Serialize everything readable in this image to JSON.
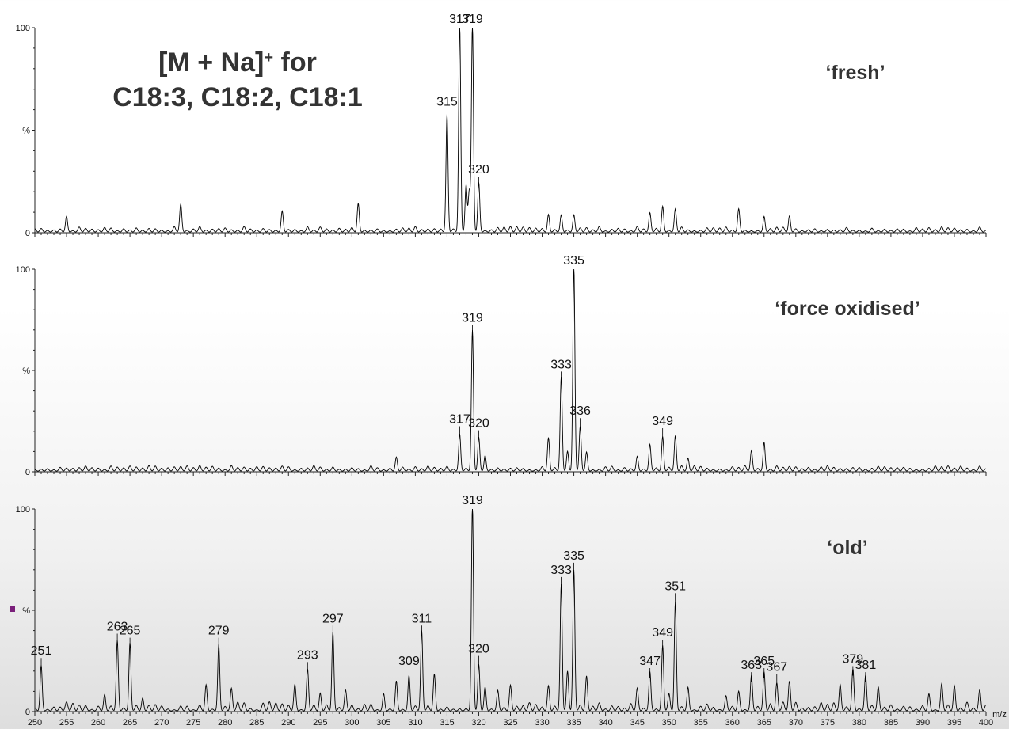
{
  "axis": {
    "xmin": 250,
    "xmax": 400,
    "x_unit": "m/z",
    "x_ticks": [
      250,
      255,
      260,
      265,
      270,
      275,
      280,
      285,
      290,
      295,
      300,
      305,
      310,
      315,
      320,
      325,
      330,
      335,
      340,
      345,
      350,
      355,
      360,
      365,
      370,
      375,
      380,
      385,
      390,
      395,
      400
    ],
    "y_tick_labels": [
      "0",
      "%",
      "100"
    ]
  },
  "marker_color": "#7a1f7a",
  "annotation": {
    "line1": "[M + Na]",
    "line1_sup": "+",
    "line1_tail": " for",
    "line2": "C18:3, C18:2, C18:1"
  },
  "chart_data": [
    {
      "type": "line",
      "title": "‘fresh’",
      "xlim": [
        250,
        400
      ],
      "ylim": [
        0,
        100
      ],
      "ylabel": "%",
      "peaks": [
        {
          "x": 315,
          "y": 55,
          "label": "315"
        },
        {
          "x": 317,
          "y": 100,
          "label": "317"
        },
        {
          "x": 319,
          "y": 100,
          "label": "319"
        },
        {
          "x": 320,
          "y": 22,
          "label": "320"
        }
      ],
      "minor_peaks": [
        [
          255,
          6
        ],
        [
          273,
          11
        ],
        [
          289,
          8
        ],
        [
          301,
          12
        ],
        [
          318,
          22
        ],
        [
          318.5,
          20
        ],
        [
          331,
          8
        ],
        [
          333,
          7
        ],
        [
          335,
          7
        ],
        [
          347,
          7
        ],
        [
          349,
          11
        ],
        [
          351,
          9
        ],
        [
          361,
          9
        ],
        [
          365,
          7
        ],
        [
          369,
          7
        ]
      ]
    },
    {
      "type": "line",
      "title": "‘force oxidised’",
      "xlim": [
        250,
        400
      ],
      "ylim": [
        0,
        100
      ],
      "ylabel": "%",
      "peaks": [
        {
          "x": 317,
          "y": 17,
          "label": "317"
        },
        {
          "x": 319,
          "y": 67,
          "label": "319"
        },
        {
          "x": 320,
          "y": 15,
          "label": "320"
        },
        {
          "x": 333,
          "y": 44,
          "label": "333"
        },
        {
          "x": 335,
          "y": 100,
          "label": "335"
        },
        {
          "x": 336,
          "y": 21,
          "label": "336"
        },
        {
          "x": 349,
          "y": 16,
          "label": "349"
        }
      ],
      "minor_peaks": [
        [
          307,
          6
        ],
        [
          321,
          7
        ],
        [
          331,
          15
        ],
        [
          334,
          9
        ],
        [
          337,
          8
        ],
        [
          345,
          6
        ],
        [
          347,
          11
        ],
        [
          351,
          15
        ],
        [
          353,
          5
        ],
        [
          363,
          9
        ],
        [
          365,
          13
        ]
      ]
    },
    {
      "type": "line",
      "title": "‘old’",
      "xlim": [
        250,
        400
      ],
      "ylim": [
        0,
        100
      ],
      "ylabel": "%",
      "peaks": [
        {
          "x": 251,
          "y": 21,
          "label": "251"
        },
        {
          "x": 263,
          "y": 33,
          "label": "263"
        },
        {
          "x": 265,
          "y": 31,
          "label": "265"
        },
        {
          "x": 279,
          "y": 31,
          "label": "279"
        },
        {
          "x": 293,
          "y": 19,
          "label": "293"
        },
        {
          "x": 297,
          "y": 37,
          "label": "297"
        },
        {
          "x": 309,
          "y": 16,
          "label": "309"
        },
        {
          "x": 311,
          "y": 37,
          "label": "311"
        },
        {
          "x": 319,
          "y": 100,
          "label": "319"
        },
        {
          "x": 320,
          "y": 22,
          "label": "320"
        },
        {
          "x": 333,
          "y": 61,
          "label": "333"
        },
        {
          "x": 335,
          "y": 68,
          "label": "335"
        },
        {
          "x": 347,
          "y": 16,
          "label": "347"
        },
        {
          "x": 349,
          "y": 30,
          "label": "349"
        },
        {
          "x": 351,
          "y": 53,
          "label": "351"
        },
        {
          "x": 363,
          "y": 14,
          "label": "363"
        },
        {
          "x": 365,
          "y": 16,
          "label": "365"
        },
        {
          "x": 367,
          "y": 13,
          "label": "367"
        },
        {
          "x": 379,
          "y": 17,
          "label": "379"
        },
        {
          "x": 381,
          "y": 14,
          "label": "381"
        }
      ],
      "minor_peaks": [
        [
          261,
          7
        ],
        [
          267,
          5
        ],
        [
          277,
          12
        ],
        [
          281,
          8
        ],
        [
          291,
          9
        ],
        [
          295,
          8
        ],
        [
          299,
          6
        ],
        [
          305,
          7
        ],
        [
          307,
          13
        ],
        [
          313,
          14
        ],
        [
          321,
          10
        ],
        [
          323,
          8
        ],
        [
          325,
          9
        ],
        [
          331,
          9
        ],
        [
          334,
          16
        ],
        [
          337,
          15
        ],
        [
          345,
          8
        ],
        [
          350,
          5
        ],
        [
          353,
          10
        ],
        [
          359,
          5
        ],
        [
          361,
          7
        ],
        [
          369,
          11
        ],
        [
          377,
          11
        ],
        [
          383,
          9
        ],
        [
          391,
          7
        ],
        [
          393,
          9
        ],
        [
          395,
          11
        ],
        [
          399,
          7
        ]
      ]
    }
  ]
}
